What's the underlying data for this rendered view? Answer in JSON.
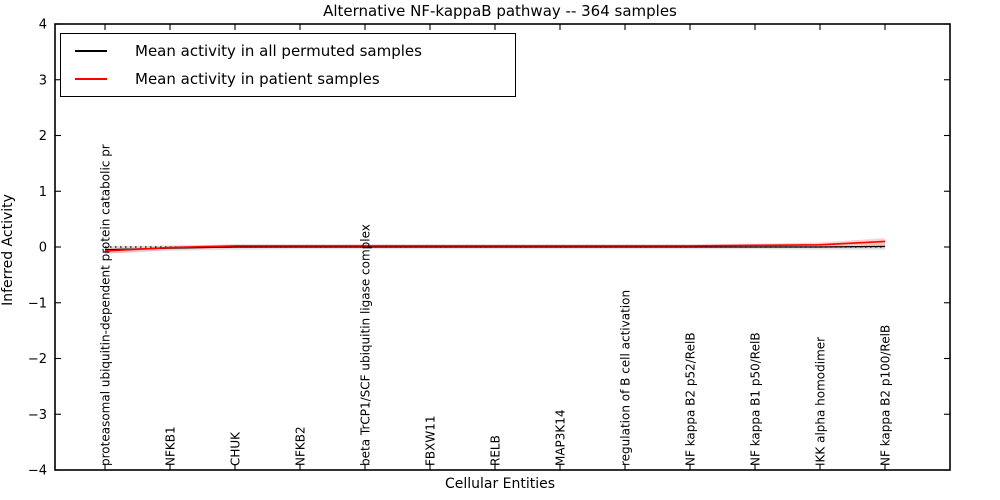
{
  "chart_data": {
    "type": "line",
    "title": "Alternative NF-kappaB pathway -- 364 samples",
    "xlabel": "Cellular Entities",
    "ylabel": "Inferred Activity",
    "ylim": [
      -4,
      4
    ],
    "ytick_values": [
      4,
      3,
      2,
      1,
      0,
      -1,
      -2,
      -3,
      -4
    ],
    "ytick_labels": [
      "4",
      "3",
      "2",
      "1",
      "0",
      "−1",
      "−2",
      "−3",
      "−4"
    ],
    "grid": false,
    "legend_position": "upper left",
    "zero_line": {
      "y": 0,
      "style": "dotted",
      "color": "#000000"
    },
    "categories": [
      "proteasomal ubiquitin-dependent protein catabolic pr",
      "NFKB1",
      "CHUK",
      "NFKB2",
      "beta TrCP1/SCF ubiquitin ligase complex",
      "FBXW11",
      "RELB",
      "MAP3K14",
      "regulation of B cell activation",
      "NF kappa B2 p52/RelB",
      "NF kappa B1 p50/RelB",
      "IKK alpha homodimer",
      "NF kappa B2 p100/RelB"
    ],
    "series": [
      {
        "name": "Mean activity in all permuted samples",
        "color": "#000000",
        "values": [
          -0.05,
          -0.02,
          0.0,
          0.0,
          0.0,
          0.0,
          0.0,
          0.0,
          0.0,
          0.0,
          0.0,
          0.0,
          0.01
        ],
        "band_upper": [
          0.02,
          0.03,
          0.04,
          0.04,
          0.04,
          0.04,
          0.04,
          0.04,
          0.04,
          0.04,
          0.04,
          0.05,
          0.07
        ],
        "band_lower": [
          -0.12,
          -0.07,
          -0.05,
          -0.04,
          -0.04,
          -0.04,
          -0.04,
          -0.04,
          -0.04,
          -0.04,
          -0.04,
          -0.05,
          -0.05
        ],
        "band_color": "#bfbfbf"
      },
      {
        "name": "Mean activity in patient samples",
        "color": "#ff0000",
        "values": [
          -0.07,
          -0.01,
          0.02,
          0.02,
          0.02,
          0.02,
          0.02,
          0.02,
          0.02,
          0.02,
          0.03,
          0.04,
          0.1
        ],
        "band_upper": [
          -0.02,
          0.02,
          0.05,
          0.05,
          0.05,
          0.05,
          0.05,
          0.05,
          0.05,
          0.05,
          0.06,
          0.08,
          0.16
        ],
        "band_lower": [
          -0.12,
          -0.05,
          -0.02,
          -0.01,
          -0.01,
          -0.01,
          -0.01,
          -0.01,
          -0.01,
          -0.01,
          -0.01,
          0.0,
          0.04
        ],
        "band_color": "#ff9999"
      }
    ]
  }
}
